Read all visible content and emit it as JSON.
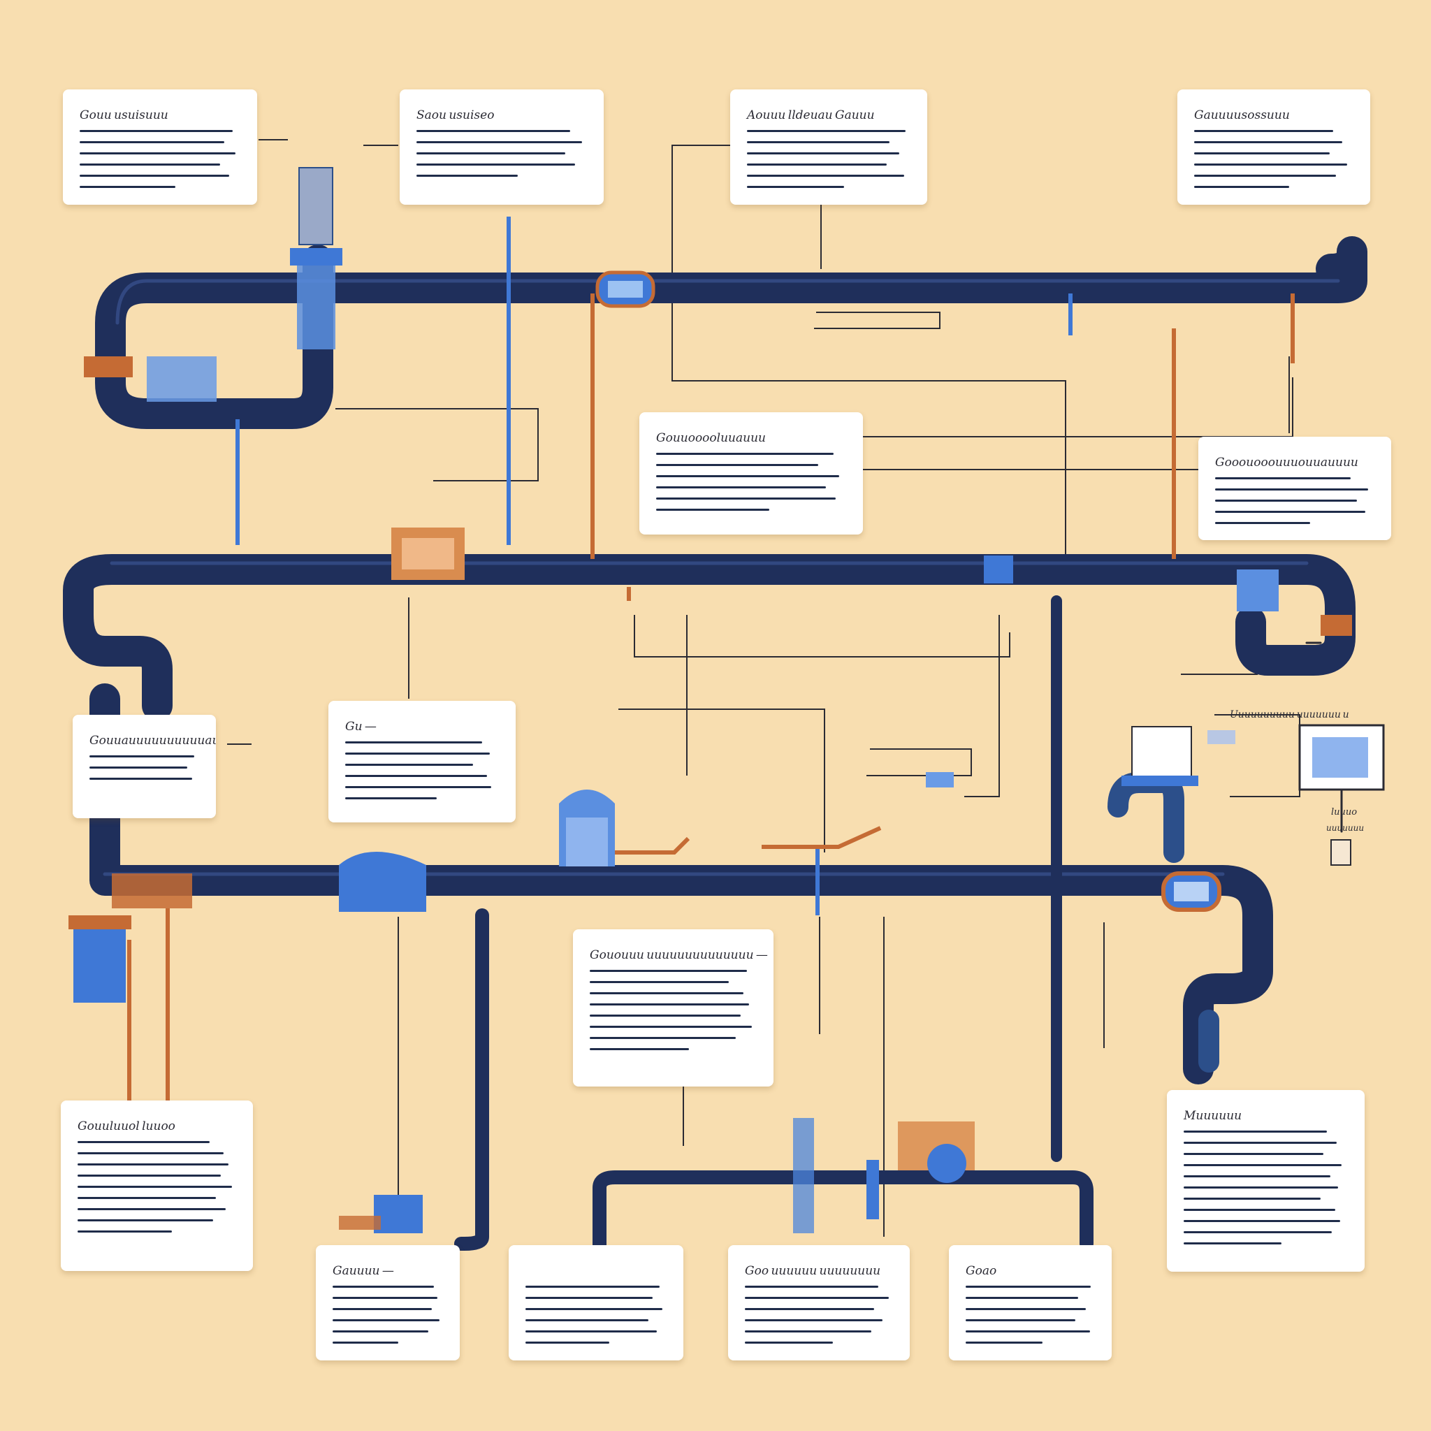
{
  "colors": {
    "background": "#f8deb0",
    "pipe_dark": "#1f2f5b",
    "pipe_highlight": "#3a5391",
    "accent_blue": "#3f78d6",
    "accent_orange": "#c56b34",
    "wire": "#2b2b33",
    "card": "#ffffff",
    "text_line": "#1f2c4a"
  },
  "cards": [
    {
      "id": "c1",
      "title": "Gouu usuisuuu",
      "lines": 6
    },
    {
      "id": "c2",
      "title": "Saou usuiseo",
      "lines": 5
    },
    {
      "id": "c3",
      "title": "Aouuu lldeuau Gauuu",
      "lines": 6
    },
    {
      "id": "c4",
      "title": "Gauuuusossuuu",
      "lines": 6
    },
    {
      "id": "c5",
      "title": "Gouuooooluuauuu",
      "lines": 6
    },
    {
      "id": "c6",
      "title": "Gooouooouuuouuauuuu",
      "lines": 5
    },
    {
      "id": "c7",
      "title": "Gouuauuuuuuuuuuau",
      "lines": 3
    },
    {
      "id": "c8",
      "title": "Gu —",
      "lines": 6
    },
    {
      "id": "c9",
      "title": "Gououuu uuuuuuuuuuuuuu —",
      "lines": 8
    },
    {
      "id": "c10",
      "title": "Gouuluuol luuoo",
      "lines": 9
    },
    {
      "id": "c11",
      "title": "Gauuuu —",
      "lines": 6
    },
    {
      "id": "c12",
      "title": "",
      "lines": 6
    },
    {
      "id": "c13",
      "title": "Goo uuuuuu uuuuuuuu",
      "lines": 6
    },
    {
      "id": "c14",
      "title": "Goao",
      "lines": 6
    },
    {
      "id": "c15",
      "title": "Muuuuuu",
      "lines": 11
    }
  ],
  "side_labels": [
    {
      "id": "panel-caption",
      "text": "Uuuuuuuuuu uuuuuuu u"
    },
    {
      "id": "small-caption-1",
      "text": "luuuo"
    },
    {
      "id": "small-caption-2",
      "text": "uuuuuuu"
    }
  ],
  "icons": [
    "monitor-icon",
    "tower-icon",
    "valve-icon",
    "building-icon",
    "pump-icon",
    "dome-station-icon"
  ]
}
